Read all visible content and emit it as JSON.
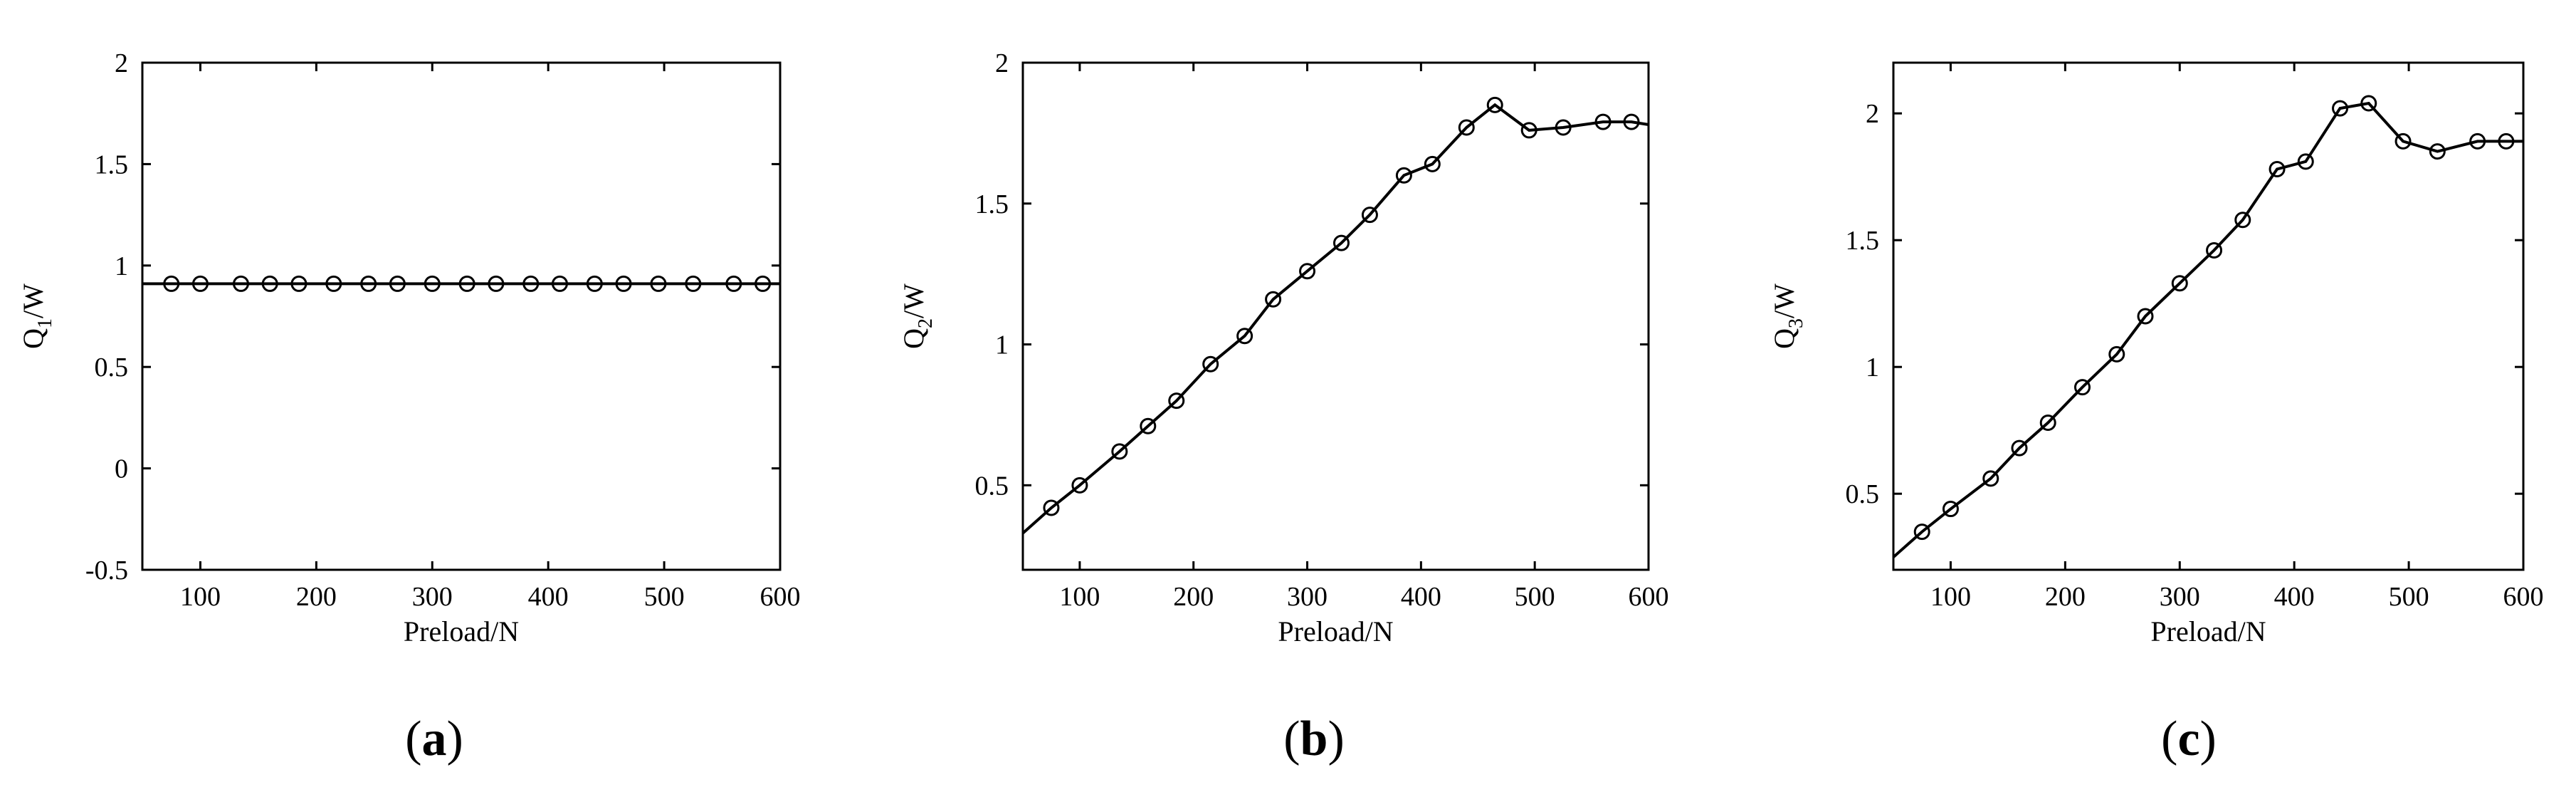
{
  "chart_data": [
    {
      "type": "line",
      "panel_label": "a",
      "xlabel": "Preload/N",
      "ylabel_main": "Q",
      "ylabel_sub": "1",
      "ylabel_unit": "/W",
      "xlim": [
        50,
        600
      ],
      "ylim": [
        -0.5,
        2
      ],
      "xticks": [
        "100",
        "200",
        "300",
        "400",
        "500",
        "600"
      ],
      "xtick_values": [
        100,
        200,
        300,
        400,
        500,
        600
      ],
      "yticks": [
        "-0.5",
        "0",
        "0.5",
        "1",
        "1.5",
        "2"
      ],
      "ytick_values": [
        -0.5,
        0,
        0.5,
        1,
        1.5,
        2
      ],
      "line_x": [
        50,
        600
      ],
      "line_y": [
        0.91,
        0.91
      ],
      "x": [
        75,
        100,
        135,
        160,
        185,
        215,
        245,
        270,
        300,
        330,
        355,
        385,
        410,
        440,
        465,
        495,
        525,
        560,
        585
      ],
      "y": [
        0.91,
        0.91,
        0.91,
        0.91,
        0.91,
        0.91,
        0.91,
        0.91,
        0.91,
        0.91,
        0.91,
        0.91,
        0.91,
        0.91,
        0.91,
        0.91,
        0.91,
        0.91,
        0.91
      ]
    },
    {
      "type": "line",
      "panel_label": "b",
      "xlabel": "Preload/N",
      "ylabel_main": "Q",
      "ylabel_sub": "2",
      "ylabel_unit": "/W",
      "xlim": [
        50,
        600
      ],
      "ylim": [
        0.2,
        2
      ],
      "xticks": [
        "100",
        "200",
        "300",
        "400",
        "500",
        "600"
      ],
      "xtick_values": [
        100,
        200,
        300,
        400,
        500,
        600
      ],
      "yticks": [
        "0.5",
        "1",
        "1.5",
        "2"
      ],
      "ytick_values": [
        0.5,
        1,
        1.5,
        2
      ],
      "line_x": [
        50,
        75,
        100,
        135,
        160,
        185,
        215,
        245,
        270,
        300,
        330,
        355,
        385,
        410,
        440,
        465,
        495,
        525,
        560,
        585,
        600
      ],
      "line_y": [
        0.33,
        0.42,
        0.5,
        0.62,
        0.71,
        0.8,
        0.93,
        1.03,
        1.16,
        1.26,
        1.36,
        1.46,
        1.6,
        1.64,
        1.77,
        1.85,
        1.76,
        1.77,
        1.79,
        1.79,
        1.78
      ],
      "x": [
        75,
        100,
        135,
        160,
        185,
        215,
        245,
        270,
        300,
        330,
        355,
        385,
        410,
        440,
        465,
        495,
        525,
        560,
        585
      ],
      "y": [
        0.42,
        0.5,
        0.62,
        0.71,
        0.8,
        0.93,
        1.03,
        1.16,
        1.26,
        1.36,
        1.46,
        1.6,
        1.64,
        1.77,
        1.85,
        1.76,
        1.77,
        1.79,
        1.79
      ]
    },
    {
      "type": "line",
      "panel_label": "c",
      "xlabel": "Preload/N",
      "ylabel_main": "Q",
      "ylabel_sub": "3",
      "ylabel_unit": "/W",
      "xlim": [
        50,
        600
      ],
      "ylim": [
        0.2,
        2.2
      ],
      "xticks": [
        "100",
        "200",
        "300",
        "400",
        "500",
        "600"
      ],
      "xtick_values": [
        100,
        200,
        300,
        400,
        500,
        600
      ],
      "yticks": [
        "0.5",
        "1",
        "1.5",
        "2"
      ],
      "ytick_values": [
        0.5,
        1,
        1.5,
        2
      ],
      "line_x": [
        50,
        75,
        100,
        135,
        160,
        185,
        215,
        245,
        270,
        300,
        330,
        355,
        385,
        410,
        440,
        465,
        495,
        525,
        560,
        585,
        600
      ],
      "line_y": [
        0.25,
        0.35,
        0.44,
        0.56,
        0.68,
        0.78,
        0.92,
        1.05,
        1.2,
        1.33,
        1.46,
        1.58,
        1.78,
        1.81,
        2.02,
        2.04,
        1.89,
        1.85,
        1.89,
        1.89,
        1.89
      ],
      "x": [
        75,
        100,
        135,
        160,
        185,
        215,
        245,
        270,
        300,
        330,
        355,
        385,
        410,
        440,
        465,
        495,
        525,
        560,
        585
      ],
      "y": [
        0.35,
        0.44,
        0.56,
        0.68,
        0.78,
        0.92,
        1.05,
        1.2,
        1.33,
        1.46,
        1.58,
        1.78,
        1.81,
        2.02,
        2.04,
        1.89,
        1.85,
        1.89,
        1.89
      ]
    }
  ]
}
